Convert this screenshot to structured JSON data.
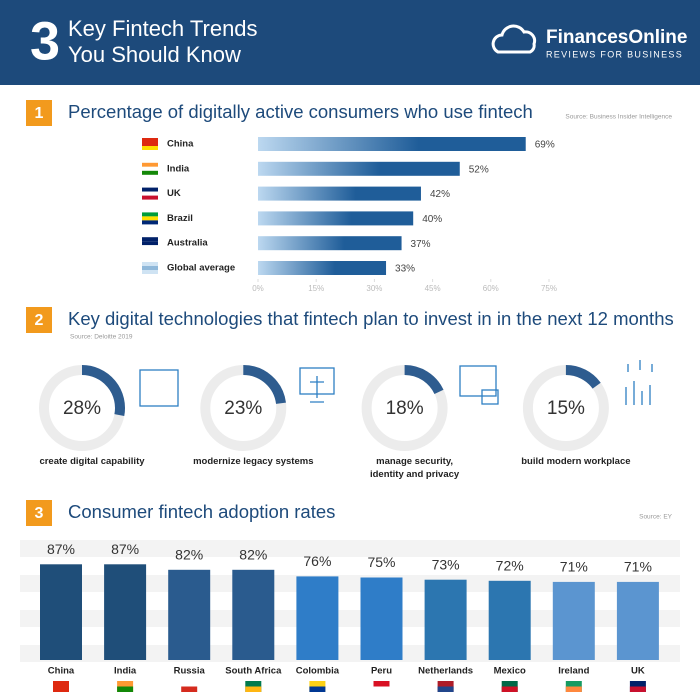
{
  "header": {
    "number": "3",
    "title_lines": [
      "Key Fintech Trends",
      "You Should Know"
    ],
    "brand": "FinancesOnline",
    "tagline": "REVIEWS FOR BUSINESS"
  },
  "chart_data": [
    {
      "type": "hbar",
      "number": "1",
      "title": "Percentage of digitally active consumers who use fintech",
      "source": "Source: Business Insider Intelligence",
      "categories": [
        "China",
        "India",
        "UK",
        "Brazil",
        "Australia",
        "Global average"
      ],
      "values": [
        69,
        52,
        42,
        40,
        37,
        33
      ],
      "value_labels": [
        "69%",
        "52%",
        "42%",
        "40%",
        "37%",
        "33%"
      ],
      "color": "#1f5d99",
      "xlim": [
        0,
        75
      ],
      "xticks": [
        {
          "value": 0,
          "label": "0%"
        },
        {
          "value": 15,
          "label": "15%"
        },
        {
          "value": 30,
          "label": "30%"
        },
        {
          "value": 45,
          "label": "45%"
        },
        {
          "value": 60,
          "label": "60%"
        },
        {
          "value": 75,
          "label": "75%"
        }
      ]
    },
    {
      "type": "donut",
      "number": "2",
      "title": "Key digital technologies that fintech plan to invest in in the next 12 months",
      "source": "Source: Deloitte 2019",
      "categories": [
        "create digital capability",
        "modernize legacy systems",
        "manage security, identity and privacy",
        "build modern workplace"
      ],
      "values": [
        28,
        23,
        18,
        15
      ],
      "value_labels": [
        "28%",
        "23%",
        "18%",
        "15%"
      ],
      "ylim": [
        0,
        100
      ],
      "color": "#2e5c8f"
    },
    {
      "type": "bar",
      "number": "3",
      "title": "Consumer fintech adoption rates",
      "source": "Source: EY",
      "categories": [
        "China",
        "India",
        "Russia",
        "South Africa",
        "Colombia",
        "Peru",
        "Netherlands",
        "Mexico",
        "Ireland",
        "UK"
      ],
      "values": [
        87,
        87,
        82,
        82,
        76,
        75,
        73,
        72,
        71,
        71
      ],
      "value_labels": [
        "87%",
        "87%",
        "82%",
        "82%",
        "76%",
        "75%",
        "73%",
        "72%",
        "71%",
        "71%"
      ],
      "colors": [
        "#1f4e79",
        "#1f4e79",
        "#2a5b8e",
        "#2a5b8e",
        "#2f7dc8",
        "#2f7dc8",
        "#2c76b0",
        "#2c76b0",
        "#5b95d0",
        "#5b95d0"
      ],
      "ylim": [
        0,
        100
      ]
    }
  ]
}
